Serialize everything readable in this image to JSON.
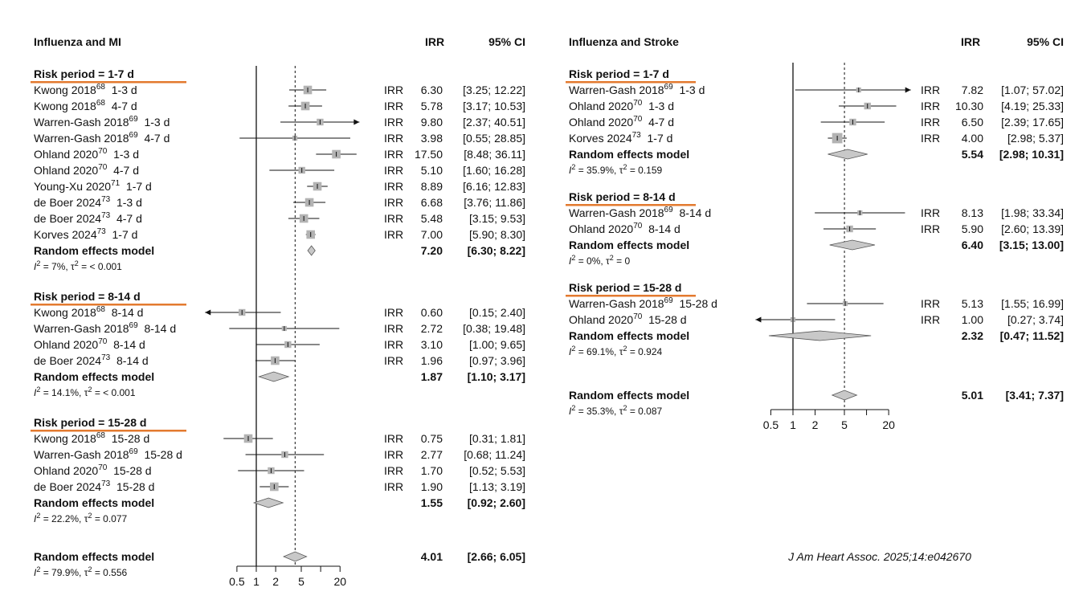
{
  "citation": "J Am Heart Assoc. 2025;14:e042670",
  "colors": {
    "box": "#b3b3b3",
    "diamond": "#c8c8c8",
    "underline": "#e37a2f",
    "line": "#111111"
  },
  "chart_data": [
    {
      "type": "forest",
      "title": "Influenza and MI",
      "col_irr": "IRR",
      "col_ci": "95% CI",
      "scale": "log",
      "reference_line": 1,
      "pooled_reference": 4.01,
      "ticks": [
        0.5,
        1,
        2,
        5,
        20
      ],
      "tick_labels": [
        "0.5",
        "1",
        "2",
        "5",
        "20"
      ],
      "groups": [
        {
          "label": "Risk period = 1-7 d",
          "studies": [
            {
              "author": "Kwong 2018",
              "ref": "68",
              "period": "1-3 d",
              "irr_label": "IRR",
              "irr": 6.3,
              "lo": 3.25,
              "hi": 12.22,
              "irr_text": "6.30",
              "ci_text": "[3.25; 12.22]",
              "weight": 3
            },
            {
              "author": "Kwong 2018",
              "ref": "68",
              "period": "4-7 d",
              "irr_label": "IRR",
              "irr": 5.78,
              "lo": 3.17,
              "hi": 10.53,
              "irr_text": "5.78",
              "ci_text": "[3.17; 10.53]",
              "weight": 3
            },
            {
              "author": "Warren-Gash 2018",
              "ref": "69",
              "period": "1-3 d",
              "irr_label": "IRR",
              "irr": 9.8,
              "lo": 2.37,
              "hi": 40.51,
              "irr_text": "9.80",
              "ci_text": "[2.37; 40.51]",
              "weight": 2
            },
            {
              "author": "Warren-Gash 2018",
              "ref": "69",
              "period": "4-7 d",
              "irr_label": "IRR",
              "irr": 3.98,
              "lo": 0.55,
              "hi": 28.85,
              "irr_text": "3.98",
              "ci_text": "[0.55; 28.85]",
              "weight": 1
            },
            {
              "author": "Ohland 2020",
              "ref": "70",
              "period": "1-3 d",
              "irr_label": "IRR",
              "irr": 17.5,
              "lo": 8.48,
              "hi": 36.11,
              "irr_text": "17.50",
              "ci_text": "[8.48; 36.11]",
              "weight": 3
            },
            {
              "author": "Ohland 2020",
              "ref": "70",
              "period": "4-7 d",
              "irr_label": "IRR",
              "irr": 5.1,
              "lo": 1.6,
              "hi": 16.28,
              "irr_text": "5.10",
              "ci_text": "[1.60; 16.28]",
              "weight": 2
            },
            {
              "author": "Young-Xu 2020",
              "ref": "71",
              "period": "1-7 d",
              "irr_label": "IRR",
              "irr": 8.89,
              "lo": 6.16,
              "hi": 12.83,
              "irr_text": "8.89",
              "ci_text": "[6.16; 12.83]",
              "weight": 3
            },
            {
              "author": "de Boer 2024",
              "ref": "73",
              "period": "1-3 d",
              "irr_label": "IRR",
              "irr": 6.68,
              "lo": 3.76,
              "hi": 11.86,
              "irr_text": "6.68",
              "ci_text": "[3.76; 11.86]",
              "weight": 3
            },
            {
              "author": "de Boer 2024",
              "ref": "73",
              "period": "4-7 d",
              "irr_label": "IRR",
              "irr": 5.48,
              "lo": 3.15,
              "hi": 9.53,
              "irr_text": "5.48",
              "ci_text": "[3.15; 9.53]",
              "weight": 3
            },
            {
              "author": "Korves 2024",
              "ref": "73",
              "period": "1-7 d",
              "irr_label": "IRR",
              "irr": 7.0,
              "lo": 5.9,
              "hi": 8.3,
              "irr_text": "7.00",
              "ci_text": "[5.90; 8.30]",
              "weight": 3
            }
          ],
          "pooled": {
            "label": "Random effects model",
            "irr": 7.2,
            "lo": 6.3,
            "hi": 8.22,
            "irr_text": "7.20",
            "ci_text": "[6.30; 8.22]"
          },
          "het": {
            "i2": "7%",
            "tau2": "< 0.001"
          }
        },
        {
          "label": "Risk period = 8-14 d",
          "studies": [
            {
              "author": "Kwong 2018",
              "ref": "68",
              "period": "8-14 d",
              "irr_label": "IRR",
              "irr": 0.6,
              "lo": 0.15,
              "hi": 2.4,
              "irr_text": "0.60",
              "ci_text": "[0.15; 2.40]",
              "weight": 2
            },
            {
              "author": "Warren-Gash 2018",
              "ref": "69",
              "period": "8-14 d",
              "irr_label": "IRR",
              "irr": 2.72,
              "lo": 0.38,
              "hi": 19.48,
              "irr_text": "2.72",
              "ci_text": "[0.38; 19.48]",
              "weight": 1
            },
            {
              "author": "Ohland 2020",
              "ref": "70",
              "period": "8-14 d",
              "irr_label": "IRR",
              "irr": 3.1,
              "lo": 1.0,
              "hi": 9.65,
              "irr_text": "3.10",
              "ci_text": "[1.00; 9.65]",
              "weight": 2
            },
            {
              "author": "de Boer 2024",
              "ref": "73",
              "period": "8-14 d",
              "irr_label": "IRR",
              "irr": 1.96,
              "lo": 0.97,
              "hi": 3.96,
              "irr_text": "1.96",
              "ci_text": "[0.97; 3.96]",
              "weight": 3
            }
          ],
          "pooled": {
            "label": "Random effects model",
            "irr": 1.87,
            "lo": 1.1,
            "hi": 3.17,
            "irr_text": "1.87",
            "ci_text": "[1.10; 3.17]"
          },
          "het": {
            "i2": "14.1%",
            "tau2": "< 0.001"
          }
        },
        {
          "label": "Risk period = 15-28 d",
          "studies": [
            {
              "author": "Kwong 2018",
              "ref": "68",
              "period": "15-28 d",
              "irr_label": "IRR",
              "irr": 0.75,
              "lo": 0.31,
              "hi": 1.81,
              "irr_text": "0.75",
              "ci_text": "[0.31; 1.81]",
              "weight": 3
            },
            {
              "author": "Warren-Gash 2018",
              "ref": "69",
              "period": "15-28 d",
              "irr_label": "IRR",
              "irr": 2.77,
              "lo": 0.68,
              "hi": 11.24,
              "irr_text": "2.77",
              "ci_text": "[0.68; 11.24]",
              "weight": 2
            },
            {
              "author": "Ohland 2020",
              "ref": "70",
              "period": "15-28 d",
              "irr_label": "IRR",
              "irr": 1.7,
              "lo": 0.52,
              "hi": 5.53,
              "irr_text": "1.70",
              "ci_text": "[0.52; 5.53]",
              "weight": 2
            },
            {
              "author": "de Boer 2024",
              "ref": "73",
              "period": "15-28 d",
              "irr_label": "IRR",
              "irr": 1.9,
              "lo": 1.13,
              "hi": 3.19,
              "irr_text": "1.90",
              "ci_text": "[1.13; 3.19]",
              "weight": 3
            }
          ],
          "pooled": {
            "label": "Random effects model",
            "irr": 1.55,
            "lo": 0.92,
            "hi": 2.6,
            "irr_text": "1.55",
            "ci_text": "[0.92; 2.60]"
          },
          "het": {
            "i2": "22.2%",
            "tau2": "0.077"
          }
        }
      ],
      "overall": {
        "label": "Random effects model",
        "irr": 4.01,
        "lo": 2.66,
        "hi": 6.05,
        "irr_text": "4.01",
        "ci_text": "[2.66; 6.05]"
      },
      "overall_het": {
        "i2": "79.9%",
        "tau2": "0.556"
      }
    },
    {
      "type": "forest",
      "title": "Influenza and Stroke",
      "col_irr": "IRR",
      "col_ci": "95% CI",
      "scale": "log",
      "reference_line": 1,
      "pooled_reference": 5.01,
      "ticks": [
        0.5,
        1,
        2,
        5,
        20
      ],
      "tick_labels": [
        "0.5",
        "1",
        "2",
        "5",
        "20"
      ],
      "groups": [
        {
          "label": "Risk period = 1-7 d",
          "studies": [
            {
              "author": "Warren-Gash 2018",
              "ref": "69",
              "period": "1-3 d",
              "irr_label": "IRR",
              "irr": 7.82,
              "lo": 1.07,
              "hi": 57.02,
              "irr_text": "7.82",
              "ci_text": "[1.07; 57.02]",
              "weight": 1
            },
            {
              "author": "Ohland 2020",
              "ref": "70",
              "period": "1-3 d",
              "irr_label": "IRR",
              "irr": 10.3,
              "lo": 4.19,
              "hi": 25.33,
              "irr_text": "10.30",
              "ci_text": "[4.19; 25.33]",
              "weight": 2
            },
            {
              "author": "Ohland 2020",
              "ref": "70",
              "period": "4-7 d",
              "irr_label": "IRR",
              "irr": 6.5,
              "lo": 2.39,
              "hi": 17.65,
              "irr_text": "6.50",
              "ci_text": "[2.39; 17.65]",
              "weight": 2
            },
            {
              "author": "Korves 2024",
              "ref": "73",
              "period": "1-7 d",
              "irr_label": "IRR",
              "irr": 4.0,
              "lo": 2.98,
              "hi": 5.37,
              "irr_text": "4.00",
              "ci_text": "[2.98; 5.37]",
              "weight": 4
            }
          ],
          "pooled": {
            "label": "Random effects model",
            "irr": 5.54,
            "lo": 2.98,
            "hi": 10.31,
            "irr_text": "5.54",
            "ci_text": "[2.98; 10.31]"
          },
          "het": {
            "i2": "35.9%",
            "tau2": "0.159"
          }
        },
        {
          "label": "Risk period = 8-14 d",
          "studies": [
            {
              "author": "Warren-Gash 2018",
              "ref": "69",
              "period": "8-14 d",
              "irr_label": "IRR",
              "irr": 8.13,
              "lo": 1.98,
              "hi": 33.34,
              "irr_text": "8.13",
              "ci_text": "[1.98; 33.34]",
              "weight": 1
            },
            {
              "author": "Ohland 2020",
              "ref": "70",
              "period": "8-14 d",
              "irr_label": "IRR",
              "irr": 5.9,
              "lo": 2.6,
              "hi": 13.39,
              "irr_text": "5.90",
              "ci_text": "[2.60; 13.39]",
              "weight": 2
            }
          ],
          "pooled": {
            "label": "Random effects model",
            "irr": 6.4,
            "lo": 3.15,
            "hi": 13.0,
            "irr_text": "6.40",
            "ci_text": "[3.15; 13.00]"
          },
          "het": {
            "i2": "0%",
            "tau2": "0"
          }
        },
        {
          "label": "Risk period = 15-28 d",
          "studies": [
            {
              "author": "Warren-Gash 2018",
              "ref": "69",
              "period": "15-28 d",
              "irr_label": "IRR",
              "irr": 5.13,
              "lo": 1.55,
              "hi": 16.99,
              "irr_text": "5.13",
              "ci_text": "[1.55; 16.99]",
              "weight": 1
            },
            {
              "author": "Ohland 2020",
              "ref": "70",
              "period": "15-28 d",
              "irr_label": "IRR",
              "irr": 1.0,
              "lo": 0.27,
              "hi": 3.74,
              "irr_text": "1.00",
              "ci_text": "[0.27; 3.74]",
              "weight": 1
            }
          ],
          "pooled": {
            "label": "Random effects model",
            "irr": 2.32,
            "lo": 0.47,
            "hi": 11.52,
            "irr_text": "2.32",
            "ci_text": "[0.47; 11.52]"
          },
          "het": {
            "i2": "69.1%",
            "tau2": "0.924"
          }
        }
      ],
      "overall": {
        "label": "Random effects model",
        "irr": 5.01,
        "lo": 3.41,
        "hi": 7.37,
        "irr_text": "5.01",
        "ci_text": "[3.41; 7.37]"
      },
      "overall_het": {
        "i2": "35.3%",
        "tau2": "0.087"
      }
    }
  ]
}
